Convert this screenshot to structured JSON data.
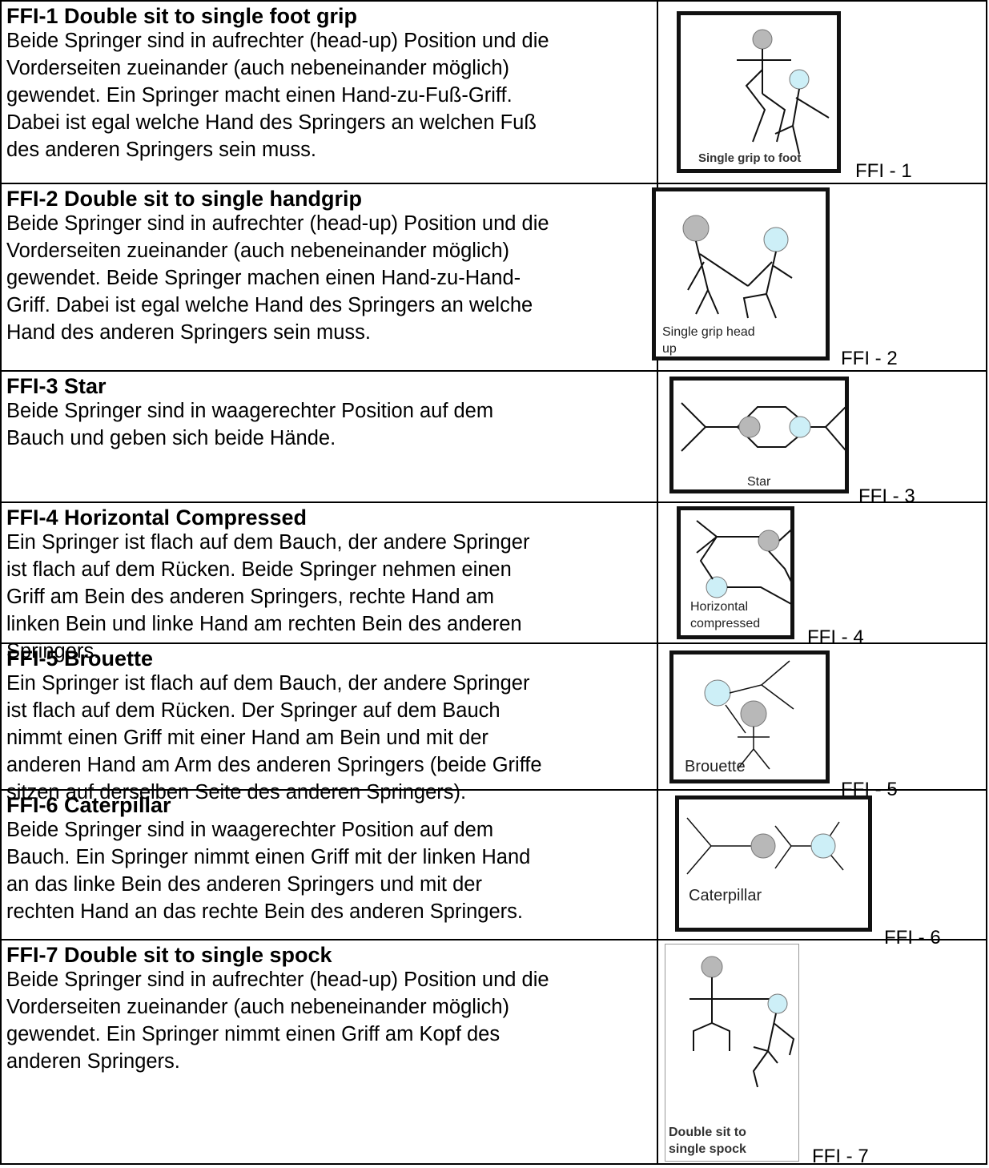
{
  "rows": [
    {
      "title": "FFI-1 Double sit to single foot grip",
      "description": [
        "Beide Springer sind in aufrechter (head-up) Position und die",
        "Vorderseiten zueinander (auch nebeneinander möglich)",
        "gewendet. Ein Springer macht einen Hand-zu-Fuß-Griff.",
        "Dabei ist egal welche Hand des Springers an welchen Fuß",
        "des anderen Springers sein muss."
      ],
      "image_caption": [
        "Single grip to foot"
      ],
      "image_label": "FFI - 1"
    },
    {
      "title": "FFI-2 Double sit to single handgrip",
      "description": [
        "Beide Springer sind in aufrechter (head-up) Position und die",
        "Vorderseiten zueinander (auch nebeneinander möglich)",
        "gewendet. Beide Springer machen einen Hand-zu-Hand-",
        "Griff. Dabei ist egal welche Hand des Springers an welche",
        "Hand des anderen Springers sein muss."
      ],
      "image_caption": [
        "Single grip head",
        "up"
      ],
      "image_label": "FFI - 2"
    },
    {
      "title": "FFI-3 Star",
      "description": [
        "Beide Springer sind in waagerechter Position auf dem",
        "Bauch und geben sich beide Hände."
      ],
      "image_caption": [
        "Star"
      ],
      "image_label": "FFI - 3"
    },
    {
      "title": "FFI-4 Horizontal Compressed",
      "description": [
        "Ein Springer ist flach auf dem Bauch, der andere Springer",
        "ist flach auf dem Rücken. Beide Springer nehmen einen",
        "Griff am Bein des anderen Springers, rechte Hand am",
        "linken Bein und linke Hand am rechten Bein des anderen",
        "Springers."
      ],
      "image_caption": [
        "Horizontal",
        "compressed"
      ],
      "image_label": "FFI - 4"
    },
    {
      "title": "FFI-5 Brouette",
      "description": [
        "Ein Springer ist flach auf dem Bauch, der andere Springer",
        "ist flach auf dem Rücken. Der Springer auf dem Bauch",
        "nimmt einen Griff mit einer Hand am Bein und mit der",
        "anderen Hand am Arm des anderen Springers (beide Griffe",
        "sitzen auf derselben Seite des anderen Springers)."
      ],
      "image_caption": [
        "Brouette"
      ],
      "image_label": "FFI - 5"
    },
    {
      "title": "FFI-6 Caterpillar",
      "description": [
        "Beide Springer sind in waagerechter Position auf dem",
        "Bauch. Ein Springer nimmt einen Griff mit der linken Hand",
        "an das linke Bein des anderen Springers und mit der",
        "rechten Hand an das rechte Bein des anderen Springers."
      ],
      "image_caption": [
        "Caterpillar"
      ],
      "image_label": "FFI - 6"
    },
    {
      "title": "FFI-7 Double sit to single spock",
      "description": [
        "Beide Springer sind in aufrechter (head-up) Position und die",
        "Vorderseiten zueinander (auch nebeneinander möglich)",
        "gewendet. Ein Springer nimmt einen Griff am Kopf des",
        "anderen Springers."
      ],
      "image_caption": [
        "Double sit to",
        "single spock"
      ],
      "image_label": "FFI - 7"
    }
  ]
}
